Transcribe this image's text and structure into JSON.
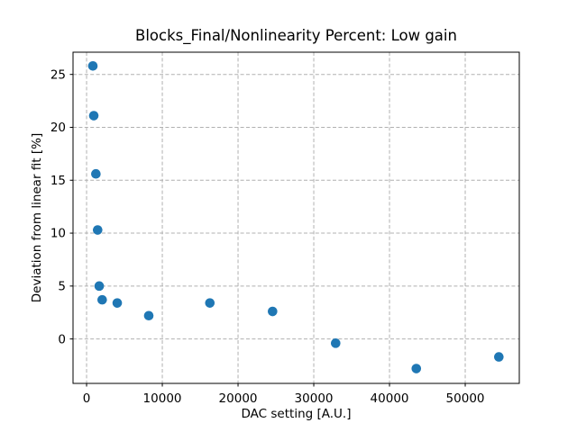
{
  "chart_data": {
    "type": "scatter",
    "title": "Blocks_Final/Nonlinearity Percent: Low gain",
    "xlabel": "DAC setting [A.U.]",
    "ylabel": "Deviation from linear fit [%]",
    "x": [
      830,
      950,
      1230,
      1460,
      1670,
      2060,
      4050,
      8210,
      16280,
      24560,
      32890,
      43540,
      54440
    ],
    "y": [
      25.8,
      21.1,
      15.6,
      10.3,
      5.0,
      3.7,
      3.4,
      2.2,
      3.4,
      2.6,
      -0.4,
      -2.8,
      -1.7
    ],
    "xlim": [
      -1790,
      57140
    ],
    "ylim": [
      -4.2,
      27.1
    ],
    "xticks": [
      0,
      10000,
      20000,
      30000,
      40000,
      50000
    ],
    "xtick_labels": [
      "0",
      "10000",
      "20000",
      "30000",
      "40000",
      "50000"
    ],
    "yticks": [
      0,
      5,
      10,
      15,
      20,
      25
    ],
    "ytick_labels": [
      "0",
      "5",
      "10",
      "15",
      "20",
      "25"
    ],
    "grid": true,
    "grid_line_style": "dashed",
    "legend_position": "none",
    "colors": {
      "marker": "#1f77b4",
      "grid": "#b0b0b0",
      "spine": "#000000",
      "text": "#000000",
      "background": "#ffffff"
    }
  }
}
